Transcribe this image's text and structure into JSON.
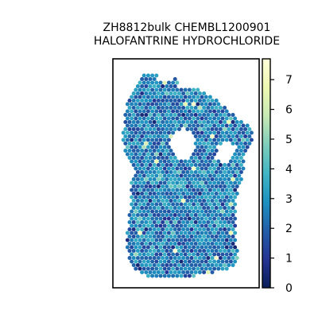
{
  "chart_data": {
    "type": "heatmap",
    "subtype": "spatial-hex-spot-map",
    "title_line1": "ZH8812bulk CHEMBL1200901",
    "title_line2": "HALOFANTRINE HYDROCHLORIDE",
    "xlabel": "",
    "ylabel": "",
    "colorbar": {
      "colormap": "YlGnBu",
      "vmin": 0,
      "vmax": 7.7,
      "ticks": [
        "0",
        "1",
        "2",
        "3",
        "4",
        "5",
        "6",
        "7"
      ]
    },
    "value_distribution": {
      "typical_range": [
        1.5,
        4.0
      ],
      "max_observed": 7.7
    },
    "grid": false,
    "legend": "colorbar-right"
  }
}
